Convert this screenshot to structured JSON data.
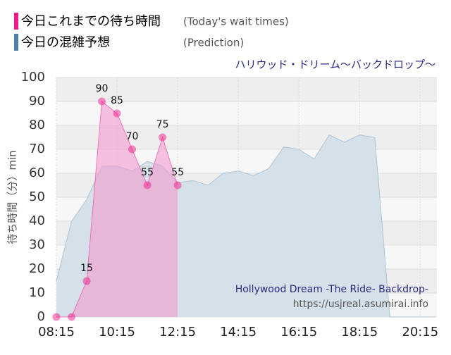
{
  "chart_data": {
    "type": "area",
    "subtitle": "ハリウッド・ドリーム～バックドロップ～",
    "y_label": "待ち時間（分）min",
    "watermark": [
      "Hollywood Dream -The Ride- Backdrop-",
      "https://usjreal.asumirai.info"
    ],
    "xlim": [
      495,
      1248
    ],
    "xticks": [
      {
        "value": 495,
        "label": "08:15"
      },
      {
        "value": 615,
        "label": "10:15"
      },
      {
        "value": 735,
        "label": "12:15"
      },
      {
        "value": 855,
        "label": "14:15"
      },
      {
        "value": 975,
        "label": "16:15"
      },
      {
        "value": 1095,
        "label": "18:15"
      },
      {
        "value": 1215,
        "label": "20:15"
      }
    ],
    "ylim": [
      0,
      100
    ],
    "yticks": [
      0,
      10,
      20,
      30,
      40,
      50,
      60,
      70,
      80,
      90,
      100
    ],
    "grid": true,
    "series": [
      {
        "name": "今日の混雑予想",
        "name_en": "(Prediction)",
        "color": "#4f81a8",
        "fill": "#d5e0e9",
        "x": [
          495,
          525,
          555,
          585,
          615,
          645,
          675,
          705,
          735,
          765,
          795,
          825,
          855,
          885,
          915,
          945,
          975,
          1005,
          1035,
          1065,
          1095,
          1125,
          1155,
          1185,
          1215,
          1245
        ],
        "values": [
          15,
          40,
          49,
          63,
          63,
          61,
          65,
          63,
          56,
          57,
          55,
          60,
          61,
          59,
          62,
          71,
          70,
          66,
          76,
          73,
          76,
          75,
          0,
          0,
          0,
          0
        ]
      },
      {
        "name": "今日これまでの待ち時間",
        "name_en": "(Today's wait times)",
        "color": "#ee1b8a",
        "fill": "#f39bd0",
        "x": [
          495,
          525,
          555,
          585,
          615,
          645,
          675,
          705,
          735
        ],
        "values": [
          0,
          0,
          15,
          90,
          85,
          70,
          55,
          75,
          55
        ]
      }
    ]
  }
}
